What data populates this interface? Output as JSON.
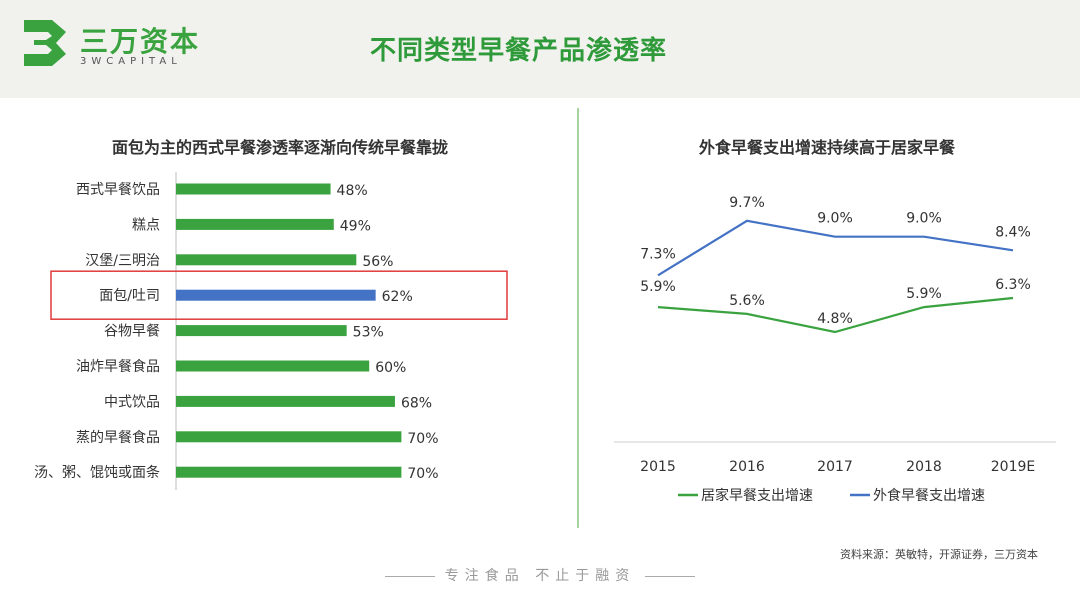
{
  "header": {
    "logo_cn": "三万资本",
    "logo_en": "3WCAPITAL",
    "title": "不同类型早餐产品渗透率"
  },
  "colors": {
    "green": "#3aa33f",
    "blue": "#4472c4",
    "highlight_box": "#e03a3a",
    "header_bg": "#f1f2ee"
  },
  "chart_data": [
    {
      "type": "bar",
      "orientation": "horizontal",
      "title": "面包为主的西式早餐渗透率逐渐向传统早餐靠拢",
      "categories": [
        "西式早餐饮品",
        "糕点",
        "汉堡/三明治",
        "面包/吐司",
        "谷物早餐",
        "油炸早餐食品",
        "中式饮品",
        "蒸的早餐食品",
        "汤、粥、馄饨或面条"
      ],
      "values": [
        48,
        49,
        56,
        62,
        53,
        60,
        68,
        70,
        70
      ],
      "value_labels": [
        "48%",
        "49%",
        "56%",
        "62%",
        "53%",
        "60%",
        "68%",
        "70%",
        "70%"
      ],
      "highlight_index": 3,
      "bar_color": "#3aa33f",
      "highlight_color": "#4472c4",
      "xlim": [
        0,
        100
      ]
    },
    {
      "type": "line",
      "title": "外食早餐支出增速持续高于居家早餐",
      "x": [
        "2015",
        "2016",
        "2017",
        "2018",
        "2019E"
      ],
      "series": [
        {
          "name": "居家早餐支出增速",
          "values": [
            5.9,
            5.6,
            4.8,
            5.9,
            6.3
          ],
          "labels": [
            "5.9%",
            "5.6%",
            "4.8%",
            "5.9%",
            "6.3%"
          ],
          "color": "#3aa33f"
        },
        {
          "name": "外食早餐支出增速",
          "values": [
            7.3,
            9.7,
            9.0,
            9.0,
            8.4
          ],
          "labels": [
            "7.3%",
            "9.7%",
            "9.0%",
            "9.0%",
            "8.4%"
          ],
          "color": "#4472c4"
        }
      ],
      "ylim": [
        0,
        11
      ],
      "legend": "bottom"
    }
  ],
  "source": "资料来源：英敏特，开源证券，三万资本",
  "footer": "专注食品  不止于融资"
}
